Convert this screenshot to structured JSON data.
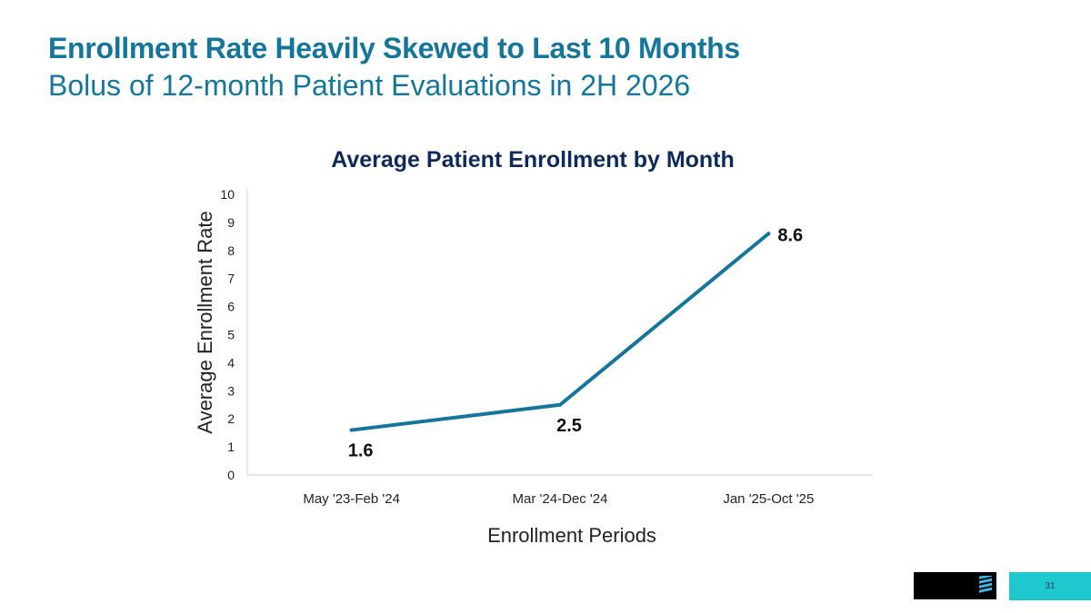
{
  "slide": {
    "title": "Enrollment Rate Heavily Skewed to Last 10 Months",
    "subtitle": "Bolus of 12-month Patient Evaluations in 2H 2026",
    "page_number": "31"
  },
  "colors": {
    "title": "#16769a",
    "chart_title": "#0f2a5a",
    "line": "#16769a",
    "page_box": "#1ec8cc"
  },
  "chart_data": {
    "type": "line",
    "title": "Average Patient Enrollment by Month",
    "xlabel": "Enrollment Periods",
    "ylabel": "Average Enrollment Rate",
    "categories": [
      "May '23-Feb '24",
      "Mar '24-Dec '24",
      "Jan '25-Oct '25"
    ],
    "series": [
      {
        "values": [
          1.6,
          2.5,
          8.6
        ],
        "labels": [
          "1.6",
          "2.5",
          "8.6"
        ]
      }
    ],
    "ylim": [
      0,
      10
    ],
    "yticks": [
      "0",
      "1",
      "2",
      "3",
      "4",
      "5",
      "6",
      "7",
      "8",
      "9",
      "10"
    ],
    "grid": false,
    "legend": "none"
  }
}
